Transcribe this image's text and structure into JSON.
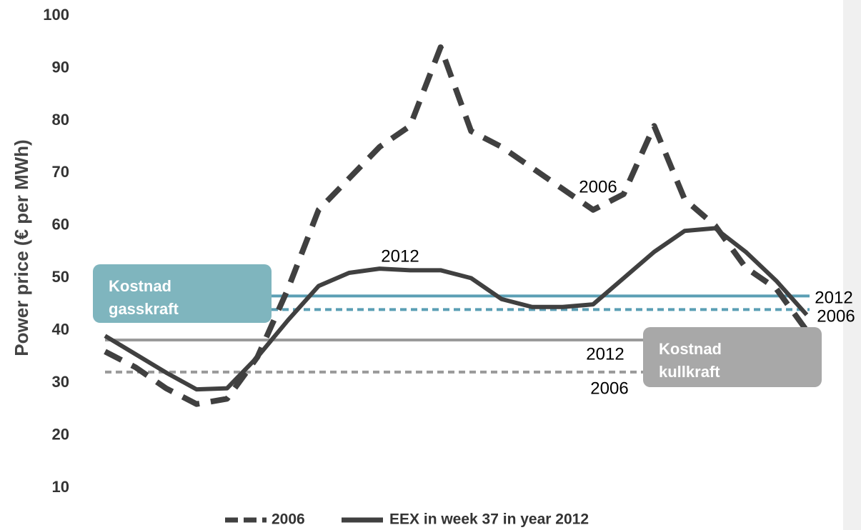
{
  "chart_data": {
    "type": "line",
    "y_label": "Power price (€ per MWh)",
    "categories": [
      null,
      null,
      null,
      null,
      null,
      null,
      null,
      null,
      null,
      null,
      null,
      null,
      null,
      null,
      null,
      null,
      null,
      null,
      null,
      null,
      null,
      null,
      null,
      null
    ],
    "series": [
      {
        "name": "2006",
        "color": "#404040",
        "dashed": true,
        "values": [
          36,
          33,
          29,
          26,
          27,
          35,
          48,
          63,
          69,
          75,
          79,
          94,
          78,
          75,
          71,
          67,
          63,
          66,
          79,
          65,
          60,
          52,
          48,
          40
        ]
      },
      {
        "name": "EEX in week 37 in year 2012",
        "color": "#404040",
        "dashed": false,
        "values": [
          39,
          35.5,
          32,
          28.8,
          29,
          35,
          42,
          48.5,
          51,
          51.8,
          51.5,
          51.5,
          50,
          46,
          44.5,
          44.5,
          45,
          50,
          55,
          59,
          59.5,
          55,
          49.5,
          43
        ]
      }
    ],
    "ylim": [
      2,
      100
    ],
    "yticks": [
      10,
      20,
      30,
      40,
      50,
      60,
      70,
      80,
      90,
      100
    ],
    "reference_lines": [
      {
        "value": 46.6,
        "color": "#5b9fb5",
        "dashed": false,
        "label": "2012"
      },
      {
        "value": 44,
        "color": "#5b9fb5",
        "dashed": true,
        "label": "2006"
      },
      {
        "value": 38.2,
        "color": "#9a9a9a",
        "dashed": false,
        "label": "2012"
      },
      {
        "value": 32.1,
        "color": "#9a9a9a",
        "dashed": true,
        "label": "2006"
      }
    ],
    "boxes": [
      {
        "lines": [
          "Kostnad",
          "gasskraft"
        ],
        "color": "#7fb5be"
      },
      {
        "lines": [
          "Kostnad",
          "kullkraft"
        ],
        "color": "#a8a8a8"
      }
    ],
    "annotations": [
      "2006",
      "2012"
    ]
  }
}
